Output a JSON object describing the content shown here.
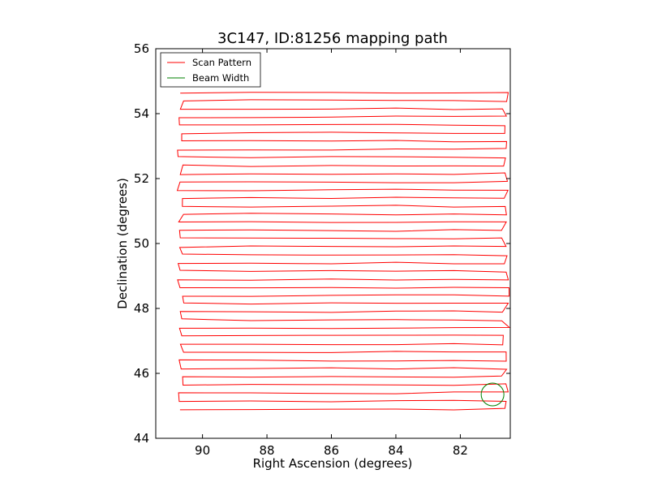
{
  "chart_data": {
    "type": "line",
    "title": "3C147, ID:81256 mapping path",
    "xlabel": "Right Ascension (degrees)",
    "ylabel": "Declination (degrees)",
    "xlim": [
      91.45,
      80.45
    ],
    "ylim": [
      44,
      56
    ],
    "xticks": [
      90,
      88,
      86,
      84,
      82
    ],
    "yticks": [
      44,
      46,
      48,
      50,
      52,
      54,
      56
    ],
    "grid": false,
    "legend_location": "top-left",
    "legend": [
      {
        "label": "Scan Pattern",
        "color": "#ff0000"
      },
      {
        "label": "Beam Width",
        "color": "#008000"
      }
    ],
    "series": [
      {
        "name": "Scan Pattern",
        "color": "#ff0000",
        "scan": {
          "ra_left": 90.7,
          "ra_right": 80.6,
          "dec_start": 44.9,
          "dec_end": 54.8,
          "row_step": 0.25
        }
      },
      {
        "name": "Beam Width",
        "color": "#008000",
        "shape": "circle",
        "center": [
          81.0,
          45.35
        ],
        "radius_dec": 0.35
      }
    ]
  }
}
